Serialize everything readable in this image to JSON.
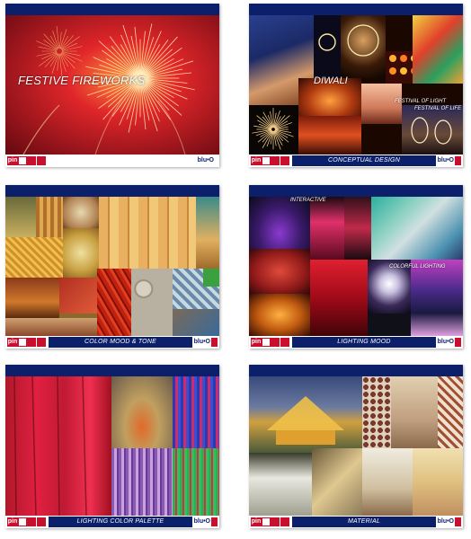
{
  "brand": {
    "pin_label": "pin",
    "logo_text": "blu•O"
  },
  "slides": [
    {
      "footer_title": "",
      "labels": [
        "FESTIVE FIREWORKS"
      ]
    },
    {
      "footer_title": "CONCEPTUAL DESIGN",
      "labels": [
        "DIWALI",
        "FESTIVAL OF LIGHT",
        "FESTIVAL OF LIFE"
      ]
    },
    {
      "footer_title": "COLOR MOOD & TONE",
      "labels": []
    },
    {
      "footer_title": "LIGHTING MOOD",
      "labels": [
        "INTERACTIVE",
        "COLORFUL LIGHTING"
      ]
    },
    {
      "footer_title": "LIGHTING COLOR PALETTE",
      "labels": []
    },
    {
      "footer_title": "MATERIAL",
      "labels": []
    }
  ],
  "colors": {
    "header_blue": "#0b1f6b",
    "accent_red": "#c8102e"
  }
}
